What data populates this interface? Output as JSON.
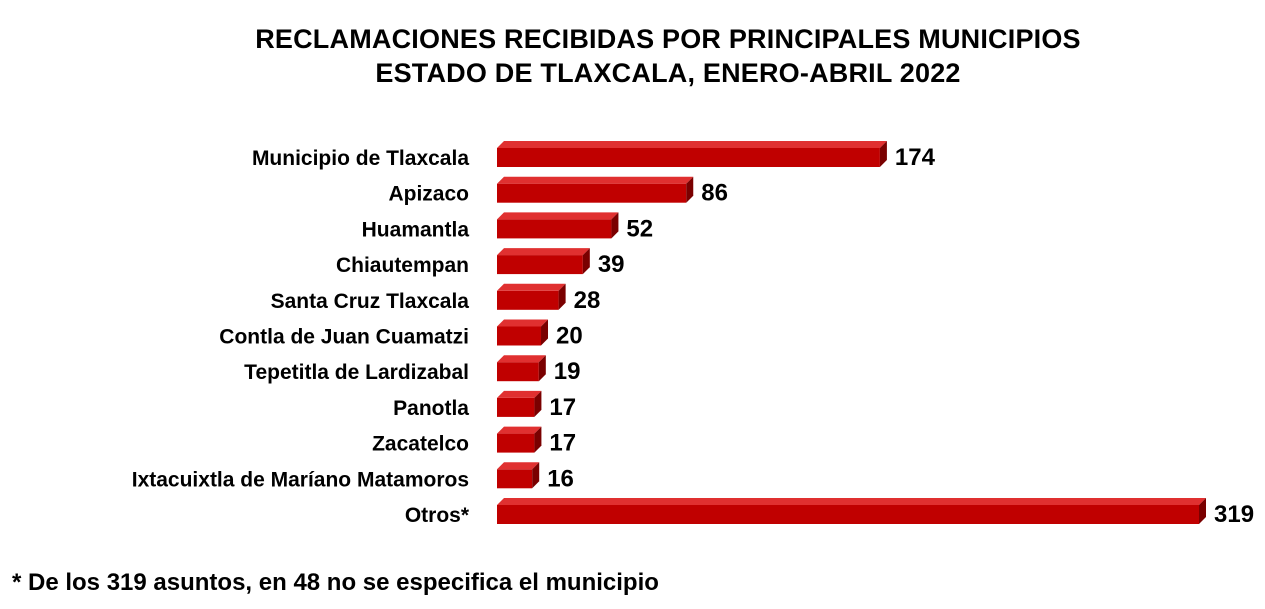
{
  "chart_data": {
    "type": "bar",
    "orientation": "horizontal",
    "title": "RECLAMACIONES RECIBIDAS POR PRINCIPALES MUNICIPIOS",
    "subtitle": "ESTADO DE TLAXCALA, ENERO-ABRIL 2022",
    "categories": [
      "Municipio de Tlaxcala",
      "Apizaco",
      "Huamantla",
      "Chiautempan",
      "Santa Cruz Tlaxcala",
      "Contla de Juan Cuamatzi",
      "Tepetitla de Lardizabal",
      "Panotla",
      "Zacatelco",
      "Ixtacuixtla de Maríano Matamoros",
      "Otros*"
    ],
    "values": [
      174,
      86,
      52,
      39,
      28,
      20,
      19,
      17,
      17,
      16,
      319
    ],
    "value_labels": [
      "174",
      "86",
      "52",
      "39",
      "28",
      "20",
      "19",
      "17",
      "17",
      "16",
      "319"
    ],
    "xlim": [
      0,
      319
    ],
    "grid": false,
    "bar_color": "#c00000",
    "bar_side_color": "#7a0000",
    "bar_top_color": "#e03030"
  },
  "footnote": "* De los 319 asuntos, en 48 no se especifica el municipio"
}
